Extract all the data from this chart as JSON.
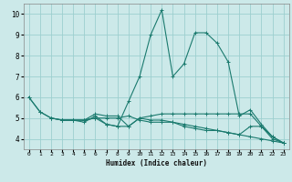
{
  "title": "",
  "xlabel": "Humidex (Indice chaleur)",
  "ylabel": "",
  "xlim": [
    -0.5,
    23.5
  ],
  "ylim": [
    3.5,
    10.5
  ],
  "yticks": [
    4,
    5,
    6,
    7,
    8,
    9,
    10
  ],
  "xtick_labels": [
    "0",
    "1",
    "2",
    "3",
    "4",
    "5",
    "6",
    "7",
    "8",
    "9",
    "10",
    "11",
    "12",
    "13",
    "14",
    "15",
    "16",
    "17",
    "18",
    "19",
    "20",
    "21",
    "22",
    "23"
  ],
  "background_color": "#cce9e9",
  "grid_color": "#9dcfcf",
  "line_color": "#1a7a6e",
  "lines": [
    {
      "x": [
        0,
        1,
        2,
        3,
        4,
        5,
        6,
        7,
        8,
        9,
        10,
        11,
        12,
        13,
        14,
        15,
        16,
        17,
        18,
        19,
        20,
        21,
        22,
        23
      ],
      "y": [
        6.0,
        5.3,
        5.0,
        4.9,
        4.9,
        4.9,
        5.0,
        4.7,
        4.6,
        5.8,
        7.0,
        9.0,
        10.2,
        7.0,
        7.6,
        9.1,
        9.1,
        8.6,
        7.7,
        5.1,
        5.4,
        4.7,
        4.1,
        3.8
      ]
    },
    {
      "x": [
        0,
        1,
        2,
        3,
        4,
        5,
        6,
        7,
        8,
        9,
        10,
        11,
        12,
        13,
        14,
        15,
        16,
        17,
        18,
        19,
        20,
        21,
        22,
        23
      ],
      "y": [
        6.0,
        5.3,
        5.0,
        4.9,
        4.9,
        4.8,
        5.1,
        4.7,
        4.6,
        4.6,
        5.0,
        5.1,
        5.2,
        5.2,
        5.2,
        5.2,
        5.2,
        5.2,
        5.2,
        5.2,
        5.2,
        4.6,
        4.1,
        3.8
      ]
    },
    {
      "x": [
        3,
        4,
        5,
        6,
        7,
        8,
        9,
        10,
        11,
        12,
        13,
        14,
        15,
        16,
        17,
        18,
        19,
        20,
        21,
        22,
        23
      ],
      "y": [
        4.9,
        4.9,
        4.9,
        5.0,
        5.0,
        5.0,
        5.1,
        4.9,
        4.8,
        4.8,
        4.8,
        4.6,
        4.5,
        4.4,
        4.4,
        4.3,
        4.2,
        4.1,
        4.0,
        3.9,
        3.8
      ]
    },
    {
      "x": [
        2,
        3,
        4,
        5,
        6,
        7,
        8,
        9,
        10,
        11,
        12,
        13,
        14,
        15,
        16,
        17,
        18,
        19,
        20,
        21,
        22,
        23
      ],
      "y": [
        5.0,
        4.9,
        4.9,
        4.9,
        5.2,
        5.1,
        5.1,
        4.6,
        5.0,
        4.9,
        4.9,
        4.8,
        4.7,
        4.6,
        4.5,
        4.4,
        4.3,
        4.2,
        4.6,
        4.6,
        4.0,
        3.8
      ]
    }
  ]
}
